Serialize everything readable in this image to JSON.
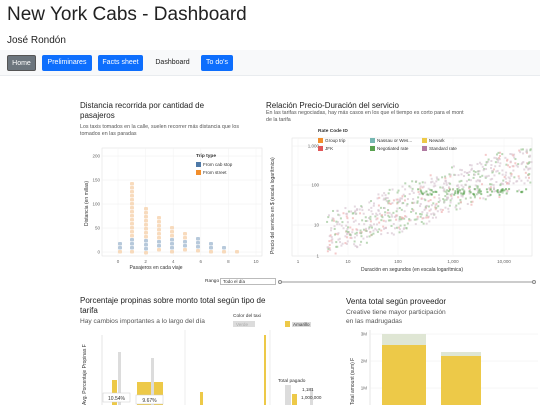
{
  "header": {
    "title": "New York Cabs - Dashboard",
    "author": "José Rondón"
  },
  "nav": {
    "items": [
      {
        "label": "Home",
        "style": "grey"
      },
      {
        "label": "Preliminares",
        "style": "blue"
      },
      {
        "label": "Facts sheet",
        "style": "blue"
      },
      {
        "label": "Dashboard",
        "style": "plain"
      },
      {
        "label": "To do's",
        "style": "blue"
      }
    ]
  },
  "panel1": {
    "title_line1": "Distancia recorrida por cantidad de",
    "title_line2": "pasajeros",
    "sub_line1": "Los taxis tomados en la calle, suelen recorrer más distancia que los",
    "sub_line2": "tomados en las paradas",
    "ylabel": "Distancia (en millas)",
    "xlabel": "Pasajeros en cada viaje",
    "legend_title": "Trip type",
    "legend": [
      {
        "label": "From cab stop",
        "color": "#4e79a7"
      },
      {
        "label": "From street",
        "color": "#f28e2b"
      }
    ],
    "yticks": [
      "200",
      "150",
      "100",
      "50",
      "0"
    ],
    "xticks": [
      "0",
      "2",
      "4",
      "6",
      "8",
      "10"
    ]
  },
  "panel2": {
    "title": "Relación Precio-Duración del servicio",
    "sub_line1": "En las tarifas negociadas, hay más casos en los que el tiempo es corto para el mont",
    "sub_line2": "de la tarifa",
    "ylabel": "Precio del servicio en $ (escala logarítmica)",
    "xlabel": "Duración en segundos (en escala logarítmica)",
    "legend_title": "Rate Code ID",
    "legend": [
      {
        "label": "Group trip",
        "color": "#f28e2b"
      },
      {
        "label": "Nassau or Wes...",
        "color": "#76b7b2"
      },
      {
        "label": "Newark",
        "color": "#edc948"
      },
      {
        "label": "JFK",
        "color": "#e15759"
      },
      {
        "label": "Negotiated rate",
        "color": "#59a14f"
      },
      {
        "label": "Standard rate",
        "color": "#b07aa1"
      }
    ],
    "yticks": [
      "1,000",
      "100",
      "10",
      "1"
    ],
    "xticks": [
      "1",
      "10",
      "100",
      "1,000",
      "10,000"
    ]
  },
  "slider": {
    "label": "Rango hor...",
    "value": "Todo el día"
  },
  "panel3": {
    "title_line1": "Porcentaje propinas sobre monto total según tipo de",
    "title_line2": "tarifa",
    "sub": "Hay cambios importantes a lo largo del día",
    "ylabel": "Avg. Porcentaje Propinas F",
    "color_legend_title": "Color del taxi",
    "color_legend": [
      {
        "label": "Verde",
        "color": "#dcdcdc"
      },
      {
        "label": "Amarillo",
        "color": "#edc948"
      }
    ],
    "size_legend_title": "Total pagado",
    "size_legend": [
      "1,181",
      "1,000,000"
    ],
    "bar_labels": [
      "10.54%",
      "9.67%"
    ]
  },
  "panel4": {
    "title": "Venta total según proveedor",
    "sub_line1": "Creative tiene mayor participación",
    "sub_line2": "en las madrugadas",
    "ylabel": "Total amount (sum) F",
    "yticks": [
      "3M",
      "2M",
      "1M"
    ]
  }
}
